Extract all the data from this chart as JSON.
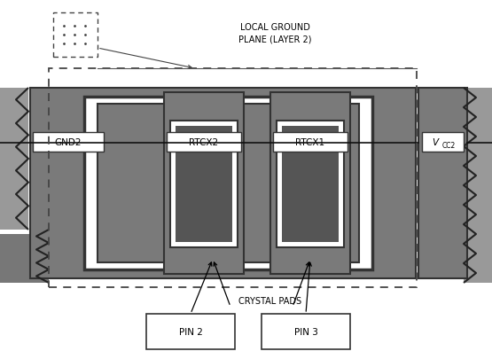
{
  "fig_width": 5.55,
  "fig_height": 4.06,
  "dpi": 100,
  "bg_color": "#ffffff",
  "gray_dark": "#555555",
  "gray_medium": "#888888",
  "gray_light": "#aaaaaa",
  "white": "#ffffff",
  "black": "#000000",
  "local_ground_label": "LOCAL GROUND\nPLANE (LAYER 2)",
  "crystal_pads_label": "CRYSTAL PADS",
  "pin2_label": "PIN 2",
  "pin3_label": "PIN 3",
  "gnd2_label": "GND2",
  "rtcx2_label": "RTCX2",
  "rtcx1_label": "RTCX1"
}
